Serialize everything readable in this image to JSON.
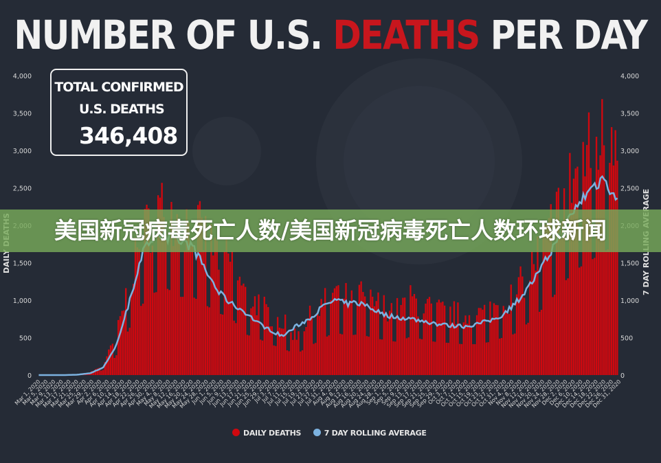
{
  "title_part1": "NUMBER OF U.S. ",
  "title_part2": "DEATHS",
  "title_part3": " PER DAY",
  "total_box": {
    "line1": "TOTAL CONFIRMED",
    "line2": "U.S. DEATHS",
    "value": "346,408"
  },
  "banner_text": "美国新冠病毒死亡人数/美国新冠病毒死亡人数环球新闻",
  "colors": {
    "bar": "#d0080f",
    "line": "#7cb2e0",
    "background": "#252b36",
    "title_accent": "#c8161d"
  },
  "chart_data": {
    "type": "bar",
    "ylabel": "DAILY DEATHS",
    "y2label": "7 DAY ROLLING AVERAGE",
    "ylim": [
      0,
      4000
    ],
    "y_ticks": [
      "0",
      "500",
      "1,000",
      "1,500",
      "2,000",
      "2,500",
      "3,000",
      "3,500",
      "4,000"
    ],
    "x_range": [
      "Mar 1, 2020",
      "Dec 31, 2020"
    ],
    "x_tick_labels": [
      "Mar 1, 2020",
      "Mar 5, 2020",
      "Mar 9, 2020",
      "Mar 13, 2020",
      "Mar 17, 2020",
      "Mar 21, 2020",
      "Mar 25, 2020",
      "Mar 29, 2020",
      "Apr 2, 2020",
      "Apr 6, 2020",
      "Apr 10, 2020",
      "Apr 14, 2020",
      "Apr 18, 2020",
      "Apr 22, 2020",
      "Apr 26, 2020",
      "Apr 30, 2020",
      "May 4, 2020",
      "May 8, 2020",
      "May 12, 2020",
      "May 16, 2020",
      "May 20, 2020",
      "May 24, 2020",
      "May 28, 2020",
      "Jun 1, 2020",
      "Jun 5, 2020",
      "Jun 9, 2020",
      "Jun 13, 2020",
      "Jun 17, 2020",
      "Jun 21, 2020",
      "Jun 25, 2020",
      "Jun 29, 2020",
      "Jul 3, 2020",
      "Jul 7, 2020",
      "Jul 11, 2020",
      "Jul 15, 2020",
      "Jul 19, 2020",
      "Jul 23, 2020",
      "Jul 27, 2020",
      "Jul 31, 2020",
      "Aug 4, 2020",
      "Aug 8, 2020",
      "Aug 12, 2020",
      "Aug 16, 2020",
      "Aug 20, 2020",
      "Aug 24, 2020",
      "Aug 28, 2020",
      "Sep 1, 2020",
      "Sep 5, 2020",
      "Sep 9, 2020",
      "Sep 13, 2020",
      "Sep 17, 2020",
      "Sep 21, 2020",
      "Sep 25, 2020",
      "Sep 29, 2020",
      "Oct 3, 2020",
      "Oct 7, 2020",
      "Oct 11, 2020",
      "Oct 15, 2020",
      "Oct 19, 2020",
      "Oct 23, 2020",
      "Oct 27, 2020",
      "Oct 31, 2020",
      "Nov 4, 2020",
      "Nov 8, 2020",
      "Nov 12, 2020",
      "Nov 16, 2020",
      "Nov 20, 2020",
      "Nov 24, 2020",
      "Nov 28, 2020",
      "Dec 2, 2020",
      "Dec 6, 2020",
      "Dec 10, 2020",
      "Dec 14, 2020",
      "Dec 18, 2020",
      "Dec 22, 2020",
      "Dec 26, 2020",
      "Dec 31, 2020"
    ],
    "daily_deaths_weekly": [
      0,
      0,
      0,
      5,
      30,
      120,
      450,
      1100,
      1700,
      2000,
      2100,
      1900,
      1900,
      1700,
      1500,
      1400,
      1000,
      900,
      750,
      650,
      500,
      700,
      850,
      1050,
      950,
      1000,
      900,
      850,
      800,
      950,
      850,
      800,
      780,
      750,
      750,
      800,
      900,
      1000,
      1250,
      1550,
      1900,
      2300,
      2600,
      2800,
      3000,
      3200
    ],
    "rolling_average_weekly": [
      0,
      0,
      0,
      5,
      25,
      100,
      380,
      950,
      1600,
      1900,
      1850,
      1800,
      1700,
      1400,
      1100,
      950,
      850,
      700,
      600,
      520,
      650,
      750,
      900,
      1000,
      950,
      960,
      880,
      800,
      770,
      750,
      720,
      680,
      660,
      650,
      680,
      720,
      800,
      950,
      1150,
      1400,
      1700,
      2000,
      2300,
      2500,
      2650,
      2300
    ]
  },
  "legend": {
    "daily": "DAILY DEATHS",
    "avg": "7 DAY ROLLING AVERAGE"
  }
}
